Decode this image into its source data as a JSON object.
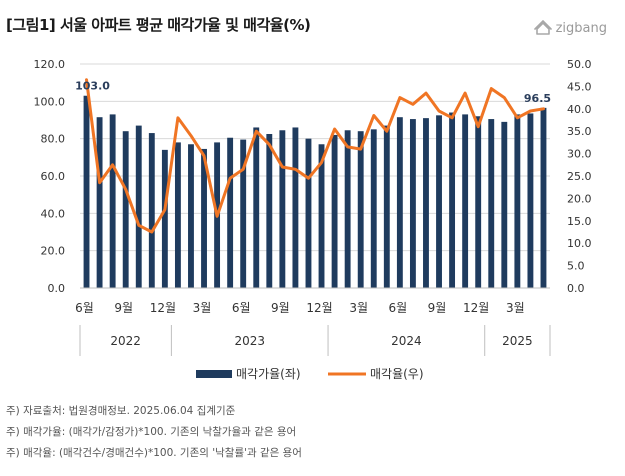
{
  "header": {
    "title": "[그림1] 서울 아파트 평균 매각가율 및 매각율(%)",
    "logo_text": "zigbang"
  },
  "notes": [
    "주) 자료출처: 법원경매정보. 2025.06.04 집계기준",
    "주) 매각가율: (매각가/감정가)*100. 기존의 낙찰가율과 같은 용어",
    "주) 매각율: (매각건수/경매건수)*100. 기존의 '낙찰률'과 같은 용어"
  ],
  "colors": {
    "bars": "#1f3b5e",
    "line": "#f07524",
    "grid": "#d9d9d9",
    "axis_text": "#333333"
  },
  "chart_data": {
    "type": "bar",
    "title": "",
    "xlabel": "",
    "ylabel_left": "",
    "ylabel_right": "",
    "ylim_left": [
      0,
      120
    ],
    "ylim_right": [
      0,
      50
    ],
    "yticks_left": [
      "0.0",
      "20.0",
      "40.0",
      "60.0",
      "80.0",
      "100.0",
      "120.0"
    ],
    "yticks_right": [
      "0.0",
      "5.0",
      "10.0",
      "15.0",
      "20.0",
      "25.0",
      "30.0",
      "35.0",
      "40.0",
      "45.0",
      "50.0"
    ],
    "months": [
      "2022-06",
      "2022-07",
      "2022-08",
      "2022-09",
      "2022-10",
      "2022-11",
      "2022-12",
      "2023-01",
      "2023-02",
      "2023-03",
      "2023-04",
      "2023-05",
      "2023-06",
      "2023-07",
      "2023-08",
      "2023-09",
      "2023-10",
      "2023-11",
      "2023-12",
      "2024-01",
      "2024-02",
      "2024-03",
      "2024-04",
      "2024-05",
      "2024-06",
      "2024-07",
      "2024-08",
      "2024-09",
      "2024-10",
      "2024-11",
      "2024-12",
      "2025-01",
      "2025-02",
      "2025-03",
      "2025-04",
      "2025-05"
    ],
    "x_tick_labels": [
      {
        "index": 0,
        "label": "6월"
      },
      {
        "index": 3,
        "label": "9월"
      },
      {
        "index": 6,
        "label": "12월"
      },
      {
        "index": 9,
        "label": "3월"
      },
      {
        "index": 12,
        "label": "6월"
      },
      {
        "index": 15,
        "label": "9월"
      },
      {
        "index": 18,
        "label": "12월"
      },
      {
        "index": 21,
        "label": "3월"
      },
      {
        "index": 24,
        "label": "6월"
      },
      {
        "index": 27,
        "label": "9월"
      },
      {
        "index": 30,
        "label": "12월"
      },
      {
        "index": 33,
        "label": "3월"
      }
    ],
    "year_groups": [
      {
        "label": "2022",
        "start": 0,
        "end": 6
      },
      {
        "label": "2023",
        "start": 7,
        "end": 18
      },
      {
        "label": "2024",
        "start": 19,
        "end": 30
      },
      {
        "label": "2025",
        "start": 31,
        "end": 35
      }
    ],
    "series": [
      {
        "name": "매각가율(좌)",
        "axis": "left",
        "type": "bar",
        "values": [
          103.0,
          91.5,
          93.0,
          84.0,
          87.0,
          83.0,
          74.0,
          78.0,
          77.0,
          74.5,
          78.0,
          80.5,
          79.5,
          86.0,
          82.5,
          84.5,
          86.0,
          80.0,
          77.0,
          82.0,
          84.5,
          84.0,
          85.0,
          87.0,
          91.5,
          90.5,
          91.0,
          92.5,
          94.0,
          93.0,
          92.0,
          90.5,
          89.0,
          93.0,
          93.5,
          96.5
        ]
      },
      {
        "name": "매각율(우)",
        "axis": "right",
        "type": "line",
        "values": [
          46.5,
          23.5,
          27.5,
          22.0,
          14.0,
          12.5,
          17.5,
          38.0,
          34.0,
          29.5,
          16.0,
          24.5,
          26.5,
          35.0,
          32.0,
          27.0,
          26.5,
          24.5,
          28.0,
          35.5,
          31.5,
          31.0,
          38.5,
          35.0,
          42.5,
          41.0,
          43.5,
          39.5,
          38.0,
          43.5,
          36.0,
          44.5,
          42.5,
          38.0,
          39.5,
          40.0
        ]
      }
    ],
    "annotations": [
      {
        "series": 0,
        "index": 0,
        "text": "103.0"
      },
      {
        "series": 0,
        "index": 35,
        "text": "96.5"
      }
    ],
    "grid": true,
    "legend_position": "bottom"
  }
}
